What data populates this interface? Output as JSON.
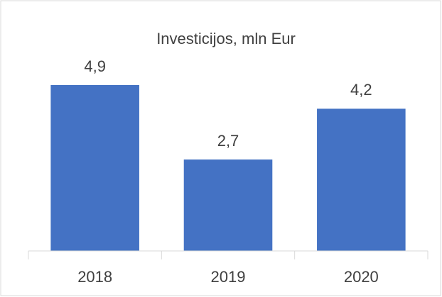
{
  "chart_data": {
    "type": "bar",
    "title": "Investicijos, mln Eur",
    "categories": [
      "2018",
      "2019",
      "2020"
    ],
    "values": [
      4.9,
      2.7,
      4.2
    ],
    "value_labels": [
      "4,9",
      "2,7",
      "4,2"
    ],
    "color": "#4472c4"
  }
}
